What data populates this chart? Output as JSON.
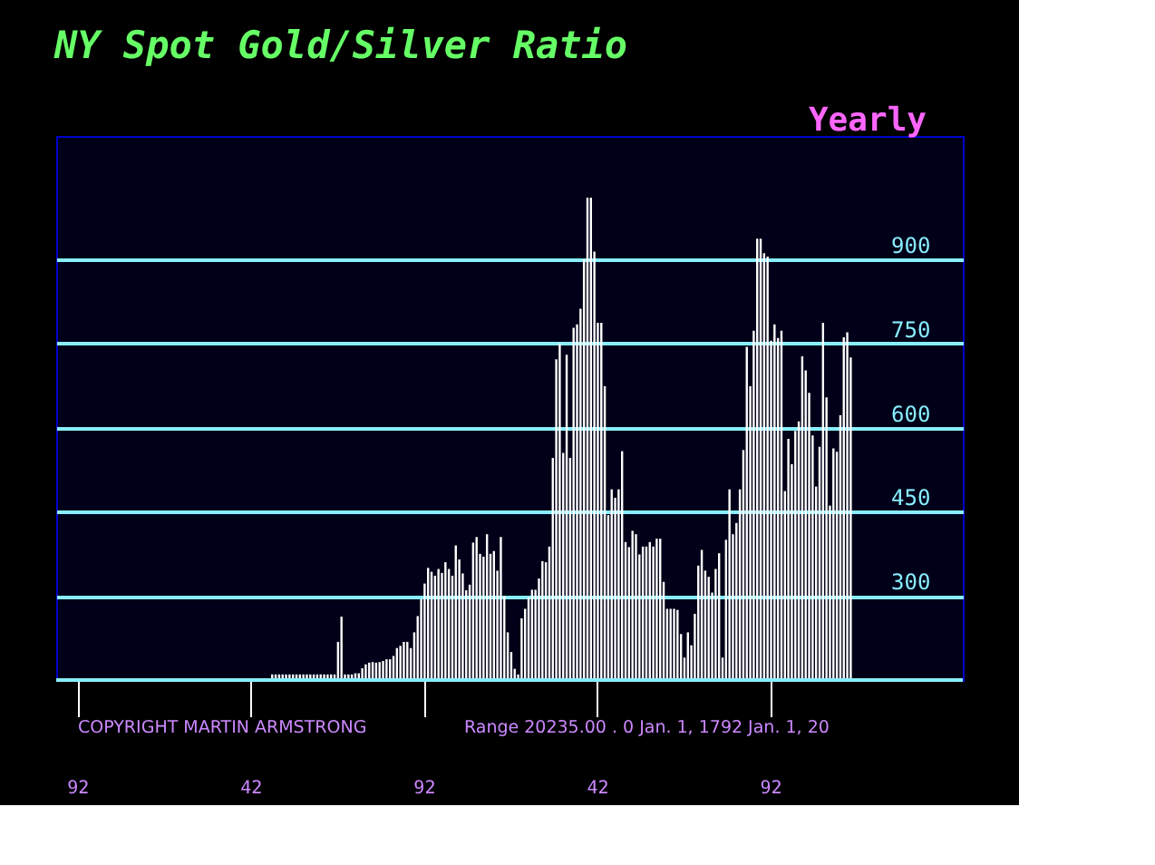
{
  "chart_data": {
    "type": "bar",
    "title": "NY Spot Gold/Silver Ratio",
    "subtitle": "Yearly",
    "annotations": [
      "COPYRIGHT MARTIN ARMSTRONG",
      "Range  20235.00 . 0 Jan. 1,  1792 Jan. 1,  20"
    ],
    "categories": [
      null,
      null,
      null,
      null,
      null,
      null,
      "92",
      null,
      null,
      null,
      null,
      null,
      null,
      null,
      null,
      null,
      null,
      null,
      null,
      null,
      null,
      null,
      null,
      null,
      null,
      null,
      null,
      null,
      null,
      null,
      null,
      null,
      null,
      null,
      null,
      null,
      null,
      null,
      null,
      null,
      null,
      null,
      null,
      null,
      null,
      null,
      null,
      null,
      null,
      null,
      null,
      null,
      null,
      null,
      null,
      null,
      "42",
      null,
      null,
      null,
      null,
      null,
      null,
      null,
      null,
      null,
      null,
      null,
      null,
      null,
      null,
      null,
      null,
      null,
      null,
      null,
      null,
      null,
      null,
      null,
      null,
      null,
      null,
      null,
      null,
      null,
      null,
      null,
      null,
      null,
      null,
      null,
      null,
      null,
      null,
      null,
      null,
      null,
      null,
      null,
      null,
      null,
      null,
      null,
      null,
      null,
      "92",
      null,
      null,
      null,
      null,
      null,
      null,
      null,
      null,
      null,
      null,
      null,
      null,
      null,
      null,
      null,
      null,
      null,
      null,
      null,
      null,
      null,
      null,
      null,
      null,
      null,
      null,
      null,
      null,
      null,
      null,
      null,
      null,
      null,
      null,
      null,
      null,
      null,
      null,
      null,
      null,
      null,
      null,
      null,
      null,
      null,
      null,
      null,
      null,
      null,
      "42",
      null,
      null,
      null,
      null,
      null,
      null,
      null,
      null,
      null,
      null,
      null,
      null,
      null,
      null,
      null,
      null,
      null,
      null,
      null,
      null,
      null,
      null,
      null,
      null,
      null,
      null,
      null,
      null,
      null,
      null,
      null,
      null,
      null,
      null,
      null,
      null,
      null,
      null,
      null,
      null,
      null,
      null,
      null,
      null,
      null,
      null,
      null,
      null,
      null,
      "92",
      null,
      null,
      null,
      null,
      null,
      null,
      null,
      null,
      null,
      null,
      null,
      null,
      null,
      null,
      null,
      null,
      null,
      null,
      null,
      null,
      null,
      null,
      null,
      null,
      null,
      null,
      null,
      null,
      null,
      null,
      null,
      null,
      null,
      null,
      null,
      null,
      null,
      null,
      null,
      null,
      null,
      null,
      null,
      null,
      null,
      null,
      null,
      null,
      null,
      null,
      null,
      null,
      null,
      null,
      null
    ],
    "values": [
      null,
      null,
      null,
      null,
      null,
      null,
      null,
      null,
      null,
      null,
      null,
      null,
      null,
      null,
      null,
      null,
      null,
      null,
      null,
      null,
      null,
      null,
      null,
      null,
      null,
      null,
      null,
      null,
      null,
      null,
      null,
      null,
      null,
      null,
      null,
      null,
      null,
      null,
      null,
      null,
      null,
      null,
      null,
      null,
      null,
      null,
      null,
      null,
      null,
      null,
      null,
      null,
      null,
      null,
      null,
      null,
      null,
      null,
      null,
      null,
      null,
      null,
      160,
      160,
      160,
      160,
      160,
      160,
      160,
      160,
      160,
      160,
      160,
      160,
      160,
      160,
      160,
      160,
      160,
      160,
      160,
      218,
      263,
      160,
      160,
      160,
      162,
      162,
      171,
      178,
      181,
      182,
      181,
      182,
      184,
      187,
      187,
      193,
      207,
      211,
      218,
      218,
      207,
      235,
      264,
      294,
      322,
      350,
      343,
      336,
      348,
      341,
      360,
      348,
      336,
      390,
      365,
      340,
      310,
      320,
      395,
      405,
      375,
      370,
      410,
      375,
      380,
      345,
      405,
      300,
      235,
      200,
      170,
      160,
      260,
      277,
      297,
      311,
      311,
      331,
      362,
      360,
      388,
      546,
      722,
      750,
      555,
      730,
      546,
      778,
      784,
      812,
      900,
      1010,
      1010,
      914,
      787,
      787,
      674,
      444,
      490,
      475,
      490,
      558,
      396,
      387,
      416,
      410,
      374,
      388,
      388,
      396,
      388,
      402,
      402,
      325,
      277,
      277,
      277,
      275,
      232,
      190,
      235,
      212,
      268,
      354,
      382,
      345,
      334,
      306,
      348,
      376,
      190,
      400,
      490,
      410,
      430,
      490,
      560,
      744,
      674,
      773,
      937,
      937,
      911,
      905,
      755,
      784,
      760,
      773,
      487,
      580,
      535,
      594,
      611,
      727,
      702,
      662,
      586,
      495,
      566,
      787,
      654,
      461,
      563,
      557,
      622,
      761,
      770,
      725,
      null,
      null,
      null,
      null,
      null,
      null,
      null,
      null,
      null,
      null,
      null,
      null,
      null,
      null,
      null,
      null,
      null,
      null,
      null,
      null,
      null,
      null,
      null,
      null,
      null,
      null,
      null,
      null,
      null,
      null,
      null,
      null
    ],
    "color": "#ffffff",
    "ylim": [
      150,
      1120
    ],
    "yticks": [
      300,
      450,
      600,
      750,
      900
    ],
    "grid": "y"
  }
}
